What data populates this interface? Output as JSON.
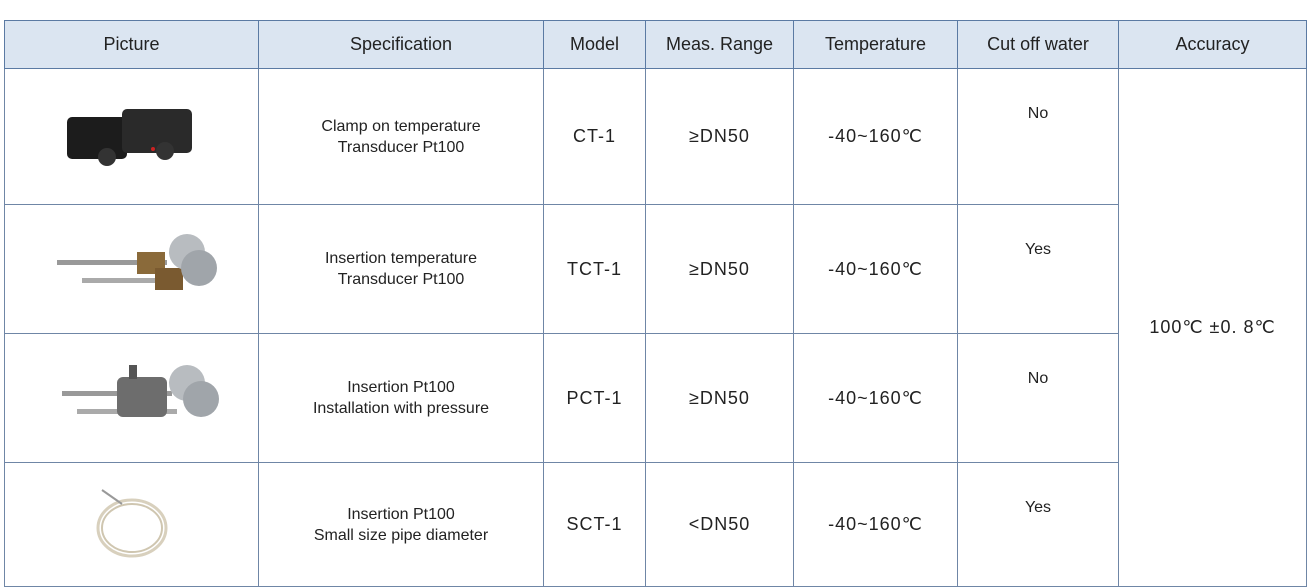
{
  "table": {
    "headers": [
      "Picture",
      "Specification",
      "Model",
      "Meas. Range",
      "Temperature",
      "Cut off water",
      "Accuracy"
    ],
    "rows": [
      {
        "specification": [
          "Clamp on temperature",
          "Transducer Pt100"
        ],
        "model": "CT-1",
        "range": "≥DN50",
        "temperature": "-40~160℃",
        "water": "No"
      },
      {
        "specification": [
          "Insertion temperature",
          "Transducer Pt100"
        ],
        "model": "TCT-1",
        "range": "≥DN50",
        "temperature": "-40~160℃",
        "water": "Yes"
      },
      {
        "specification": [
          "Insertion Pt100",
          "Installation with pressure"
        ],
        "model": "PCT-1",
        "range": "≥DN50",
        "temperature": "-40~160℃",
        "water": "No"
      },
      {
        "specification": [
          "Insertion Pt100",
          "Small size pipe diameter"
        ],
        "model": "SCT-1",
        "range": "<DN50",
        "temperature": "-40~160℃",
        "water": "Yes"
      }
    ],
    "accuracy": "100℃ ±0. 8℃"
  }
}
